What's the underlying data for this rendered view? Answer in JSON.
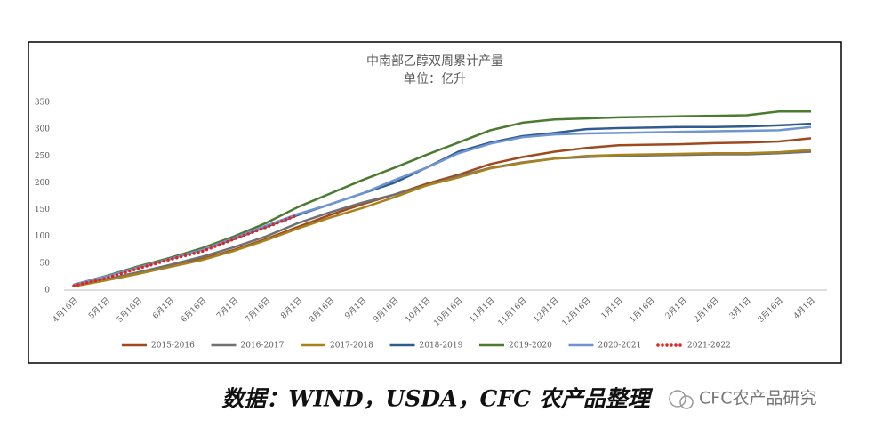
{
  "chart_data": {
    "type": "line",
    "title": "中南部乙醇双周累计产量",
    "subtitle": "单位：亿升",
    "categories": [
      "4月16日",
      "5月1日",
      "5月16日",
      "6月1日",
      "6月16日",
      "7月1日",
      "7月16日",
      "8月1日",
      "8月16日",
      "9月1日",
      "9月16日",
      "10月1日",
      "10月16日",
      "11月1日",
      "11月16日",
      "12月1日",
      "12月16日",
      "1月1日",
      "1月16日",
      "2月1日",
      "2月16日",
      "3月1日",
      "3月16日",
      "4月1日"
    ],
    "series": [
      {
        "name": "2015-2016",
        "color": "#9e4a1e",
        "values": [
          8,
          20,
          32,
          45,
          58,
          75,
          95,
          118,
          140,
          160,
          178,
          198,
          215,
          235,
          248,
          258,
          265,
          270,
          271,
          272,
          274,
          275,
          277,
          283
        ]
      },
      {
        "name": "2016-2017",
        "color": "#707070",
        "values": [
          8,
          20,
          33,
          47,
          62,
          80,
          100,
          125,
          145,
          163,
          178,
          195,
          212,
          228,
          238,
          245,
          248,
          250,
          251,
          252,
          253,
          253,
          255,
          258
        ]
      },
      {
        "name": "2017-2018",
        "color": "#a8821e",
        "values": [
          7,
          18,
          30,
          43,
          56,
          73,
          93,
          115,
          135,
          153,
          173,
          195,
          210,
          227,
          237,
          245,
          250,
          252,
          253,
          254,
          255,
          255,
          257,
          261
        ]
      },
      {
        "name": "2018-2019",
        "color": "#2f5b8e",
        "values": [
          10,
          25,
          42,
          58,
          75,
          95,
          118,
          140,
          160,
          180,
          200,
          228,
          258,
          275,
          287,
          293,
          300,
          302,
          303,
          304,
          304,
          305,
          307,
          310
        ]
      },
      {
        "name": "2019-2020",
        "color": "#4b7b2f",
        "values": [
          10,
          26,
          44,
          60,
          78,
          100,
          125,
          155,
          180,
          205,
          228,
          252,
          275,
          298,
          312,
          318,
          320,
          322,
          323,
          324,
          325,
          326,
          333,
          333
        ]
      },
      {
        "name": "2020-2021",
        "color": "#7094d0",
        "values": [
          10,
          25,
          42,
          58,
          75,
          97,
          120,
          142,
          160,
          180,
          205,
          228,
          255,
          273,
          285,
          290,
          292,
          293,
          294,
          295,
          296,
          297,
          298,
          304
        ]
      },
      {
        "name": "2021-2022",
        "color": "#e02424",
        "dotted": true,
        "values": [
          8,
          22,
          40,
          57,
          72,
          95,
          117,
          140,
          null,
          null,
          null,
          null,
          null,
          null,
          null,
          null,
          null,
          null,
          null,
          null,
          null,
          null,
          null,
          null
        ]
      }
    ],
    "ylim": [
      0,
      350
    ],
    "yticks": [
      0,
      50,
      100,
      150,
      200,
      250,
      300,
      350
    ],
    "grid": false,
    "source": "数据：WIND，USDA，CFC 农产品整理",
    "watermark": "CFC农产品研究"
  }
}
